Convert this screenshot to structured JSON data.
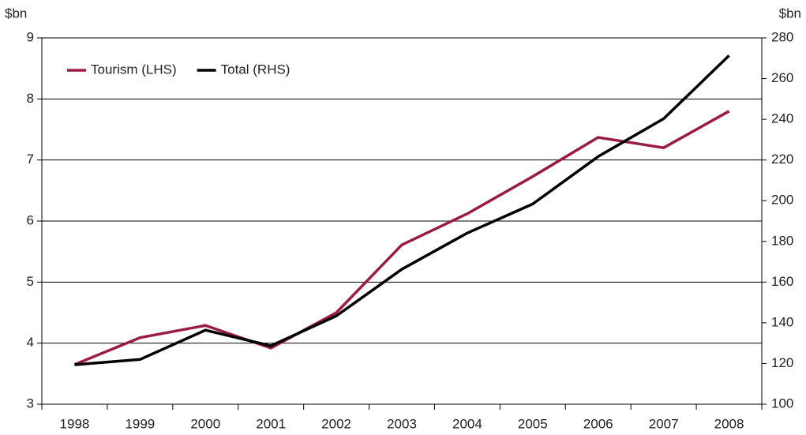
{
  "chart_data": {
    "type": "line",
    "y_label": "$bn",
    "y2_label": "$bn",
    "categories": [
      "1998",
      "1999",
      "2000",
      "2001",
      "2002",
      "2003",
      "2004",
      "2005",
      "2006",
      "2007",
      "2008"
    ],
    "series": [
      {
        "name": "Tourism (LHS)",
        "color": "#9b1b42",
        "values": [
          3.65,
          4.09,
          4.29,
          3.92,
          4.5,
          5.61,
          6.12,
          6.73,
          7.37,
          7.2,
          7.8
        ]
      },
      {
        "name": "Total (RHS)",
        "color": "#000000",
        "axis": "y2",
        "values": [
          119.4,
          122,
          136.4,
          128.7,
          143.4,
          166.3,
          184.1,
          198.4,
          221.7,
          240.3,
          271.3
        ]
      }
    ],
    "ylim": [
      3,
      9
    ],
    "yticks": [
      3,
      4,
      5,
      6,
      7,
      8,
      9
    ],
    "y2lim": [
      100,
      280
    ],
    "y2ticks": [
      100,
      120,
      140,
      160,
      180,
      200,
      220,
      240,
      260,
      280
    ],
    "grid": true,
    "legend": "upper left"
  }
}
